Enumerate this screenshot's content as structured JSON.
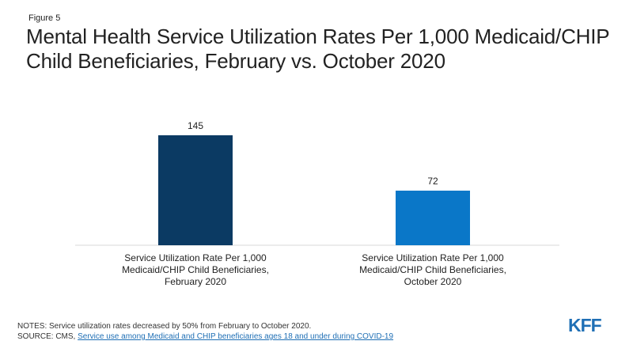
{
  "figure_label": "Figure 5",
  "title": "Mental Health Service Utilization Rates Per 1,000 Medicaid/CHIP Child Beneficiaries, February vs. October 2020",
  "notes": {
    "notes_text": "NOTES: Service utilization rates decreased by 50% from February to October 2020.",
    "source_prefix": "SOURCE: CMS,",
    "source_link": "Service use among Medicaid and CHIP beneficiaries ages 18 and under during COVID-19"
  },
  "logo": {
    "text": "KFF",
    "color": "#1f6fb5"
  },
  "chart_data": {
    "type": "bar",
    "categories": [
      [
        "Service Utilization Rate Per 1,000",
        "Medicaid/CHIP Child Beneficiaries,",
        "February 2020"
      ],
      [
        "Service Utilization Rate Per 1,000",
        "Medicaid/CHIP Child Beneficiaries,",
        "October 2020"
      ]
    ],
    "values": [
      145,
      72
    ],
    "data_labels": [
      "145",
      "72"
    ],
    "bar_colors": [
      "#0b3a63",
      "#0a77c8"
    ],
    "ylim": [
      0,
      145
    ],
    "xlabel": "",
    "ylabel": "",
    "grid": false,
    "legend": "none"
  }
}
